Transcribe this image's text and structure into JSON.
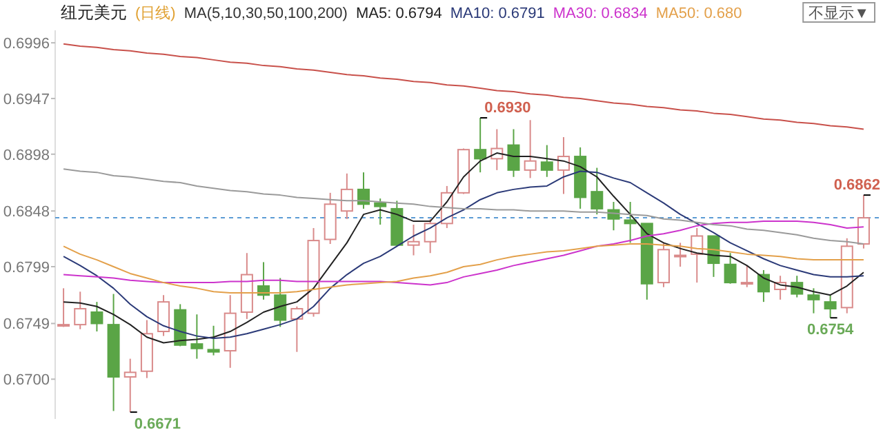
{
  "chart_data": {
    "type": "candlestick",
    "title": "纽元美元",
    "subtitle": "(日线)",
    "legend_title": "MA(5,10,30,50,100,200)",
    "legend": "top",
    "categories": [
      null,
      null,
      null,
      null,
      null,
      null,
      null,
      null,
      null,
      null,
      null,
      null,
      null,
      null,
      null,
      null,
      null,
      null,
      null,
      null,
      null,
      null,
      null,
      null,
      null,
      null,
      null,
      null,
      null,
      null,
      null,
      null,
      null,
      null,
      null,
      null,
      null,
      null,
      null,
      null,
      null,
      null,
      null,
      null,
      null,
      null,
      null,
      null,
      null
    ],
    "ohlc": [
      [
        0.6748,
        0.678,
        0.6746,
        0.6748
      ],
      [
        0.6748,
        0.6777,
        0.6744,
        0.6762
      ],
      [
        0.6759,
        0.6768,
        0.6742,
        0.6749
      ],
      [
        0.6748,
        0.6775,
        0.6672,
        0.6702
      ],
      [
        0.6702,
        0.6718,
        0.6671,
        0.6706
      ],
      [
        0.6707,
        0.6752,
        0.6701,
        0.674
      ],
      [
        0.6742,
        0.6774,
        0.6738,
        0.6768
      ],
      [
        0.6761,
        0.6766,
        0.6729,
        0.673
      ],
      [
        0.6731,
        0.6757,
        0.6718,
        0.6727
      ],
      [
        0.6726,
        0.6747,
        0.6721,
        0.6724
      ],
      [
        0.6725,
        0.6774,
        0.671,
        0.6758
      ],
      [
        0.6759,
        0.6811,
        0.6753,
        0.6792
      ],
      [
        0.6782,
        0.6803,
        0.677,
        0.6774
      ],
      [
        0.6774,
        0.6789,
        0.6746,
        0.6752
      ],
      [
        0.6753,
        0.6764,
        0.6724,
        0.6762
      ],
      [
        0.6758,
        0.6833,
        0.6755,
        0.6822
      ],
      [
        0.6823,
        0.6864,
        0.6819,
        0.6854
      ],
      [
        0.6848,
        0.6881,
        0.6841,
        0.6867
      ],
      [
        0.6867,
        0.6882,
        0.685,
        0.6854
      ],
      [
        0.6855,
        0.6859,
        0.6836,
        0.6852
      ],
      [
        0.685,
        0.6857,
        0.6817,
        0.6818
      ],
      [
        0.6818,
        0.6836,
        0.6809,
        0.6821
      ],
      [
        0.6821,
        0.6841,
        0.6811,
        0.6837
      ],
      [
        0.6837,
        0.687,
        0.6833,
        0.6864
      ],
      [
        0.6864,
        0.6903,
        0.6863,
        0.6902
      ],
      [
        0.6902,
        0.693,
        0.6882,
        0.6894
      ],
      [
        0.6894,
        0.692,
        0.6884,
        0.6903
      ],
      [
        0.6906,
        0.692,
        0.6878,
        0.6884
      ],
      [
        0.6884,
        0.6928,
        0.6877,
        0.6892
      ],
      [
        0.6891,
        0.6906,
        0.6878,
        0.6884
      ],
      [
        0.6884,
        0.6913,
        0.6863,
        0.6896
      ],
      [
        0.6896,
        0.6904,
        0.685,
        0.686
      ],
      [
        0.6865,
        0.6886,
        0.6845,
        0.685
      ],
      [
        0.6849,
        0.6856,
        0.6831,
        0.6841
      ],
      [
        0.684,
        0.6856,
        0.682,
        0.6837
      ],
      [
        0.6837,
        0.6837,
        0.677,
        0.6784
      ],
      [
        0.6785,
        0.682,
        0.6781,
        0.6814
      ],
      [
        0.6809,
        0.682,
        0.6799,
        0.6809
      ],
      [
        0.681,
        0.6833,
        0.6785,
        0.6826
      ],
      [
        0.6826,
        0.6826,
        0.679,
        0.6802
      ],
      [
        0.6801,
        0.6811,
        0.6784,
        0.6785
      ],
      [
        0.6785,
        0.68,
        0.6781,
        0.6785
      ],
      [
        0.6792,
        0.6796,
        0.6768,
        0.6777
      ],
      [
        0.6779,
        0.6791,
        0.677,
        0.6785
      ],
      [
        0.6785,
        0.6791,
        0.6772,
        0.6775
      ],
      [
        0.6774,
        0.678,
        0.6758,
        0.677
      ],
      [
        0.6768,
        0.6774,
        0.6754,
        0.6762
      ],
      [
        0.6763,
        0.6824,
        0.6758,
        0.6817
      ],
      [
        0.6819,
        0.6862,
        0.6815,
        0.6842
      ]
    ],
    "series": [
      {
        "type": "line",
        "name": "MA5: 0.6794",
        "color": "#222222",
        "values": [
          0.6768,
          0.6767,
          0.6764,
          0.6757,
          0.6748,
          0.6737,
          0.6732,
          0.6734,
          0.6735,
          0.6737,
          0.6742,
          0.675,
          0.6759,
          0.6764,
          0.6768,
          0.678,
          0.68,
          0.682,
          0.6845,
          0.6849,
          0.6845,
          0.6839,
          0.6839,
          0.6856,
          0.6878,
          0.6892,
          0.6899,
          0.6896,
          0.6896,
          0.6894,
          0.6892,
          0.6887,
          0.6878,
          0.6861,
          0.6845,
          0.6828,
          0.682,
          0.6815,
          0.6811,
          0.6809,
          0.6808,
          0.68,
          0.6789,
          0.6783,
          0.6781,
          0.6777,
          0.6774,
          0.6782,
          0.6794
        ]
      },
      {
        "type": "line",
        "name": "MA10: 0.6791",
        "color": "#2b3a78",
        "values": [
          0.6808,
          0.68,
          0.6791,
          0.678,
          0.6766,
          0.6755,
          0.6747,
          0.6742,
          0.6738,
          0.6736,
          0.6737,
          0.674,
          0.6744,
          0.6748,
          0.6753,
          0.6764,
          0.678,
          0.6792,
          0.6802,
          0.6808,
          0.6817,
          0.6826,
          0.6833,
          0.6842,
          0.6849,
          0.6858,
          0.6864,
          0.6867,
          0.6869,
          0.687,
          0.6878,
          0.6883,
          0.6882,
          0.6877,
          0.6873,
          0.6864,
          0.6855,
          0.6845,
          0.6837,
          0.6829,
          0.682,
          0.6813,
          0.6806,
          0.68,
          0.6796,
          0.6792,
          0.679,
          0.679,
          0.6791
        ]
      },
      {
        "type": "line",
        "name": "MA30: 0.6834",
        "color": "#cc33cc",
        "values": [
          0.6792,
          0.6791,
          0.679,
          0.6789,
          0.6787,
          0.6786,
          0.6785,
          0.6785,
          0.6785,
          0.6785,
          0.6786,
          0.6786,
          0.6787,
          0.6787,
          0.6786,
          0.6786,
          0.6786,
          0.6786,
          0.6786,
          0.6786,
          0.6785,
          0.6784,
          0.6783,
          0.6785,
          0.679,
          0.6793,
          0.6796,
          0.68,
          0.6803,
          0.6806,
          0.6809,
          0.6813,
          0.6817,
          0.6819,
          0.6822,
          0.6826,
          0.6828,
          0.6831,
          0.6835,
          0.6837,
          0.6838,
          0.6838,
          0.6839,
          0.6839,
          0.6839,
          0.6838,
          0.6836,
          0.6833,
          0.6834
        ]
      },
      {
        "type": "line",
        "name": "MA50: 0.680",
        "color": "#e3a04a",
        "values": [
          0.6817,
          0.681,
          0.6805,
          0.6799,
          0.6793,
          0.6789,
          0.6785,
          0.6782,
          0.678,
          0.6777,
          0.6776,
          0.6776,
          0.6776,
          0.6776,
          0.6777,
          0.6779,
          0.6781,
          0.6783,
          0.6784,
          0.6785,
          0.6786,
          0.6789,
          0.6791,
          0.6794,
          0.6799,
          0.6801,
          0.6805,
          0.6808,
          0.681,
          0.6812,
          0.6813,
          0.6815,
          0.6817,
          0.6818,
          0.6819,
          0.6819,
          0.6818,
          0.6817,
          0.6815,
          0.6814,
          0.6812,
          0.681,
          0.6809,
          0.6808,
          0.6806,
          0.6805,
          0.6805,
          0.6805,
          0.6805
        ]
      },
      {
        "type": "line",
        "color": "#9a9a9a",
        "values": [
          0.6885,
          0.6883,
          0.6882,
          0.6879,
          0.6878,
          0.6876,
          0.6874,
          0.6873,
          0.687,
          0.6868,
          0.6866,
          0.6865,
          0.6863,
          0.6862,
          0.686,
          0.6859,
          0.6858,
          0.6857,
          0.6857,
          0.6856,
          0.6855,
          0.6854,
          0.6852,
          0.6851,
          0.685,
          0.685,
          0.6849,
          0.6849,
          0.6848,
          0.6848,
          0.6848,
          0.6847,
          0.6847,
          0.6846,
          0.6845,
          0.6844,
          0.6841,
          0.684,
          0.6838,
          0.6836,
          0.6835,
          0.6832,
          0.6831,
          0.6829,
          0.6827,
          0.6824,
          0.6822,
          0.6821,
          0.6819
        ]
      },
      {
        "type": "line",
        "color": "#c8504a",
        "values": [
          0.6995,
          0.6993,
          0.6992,
          0.699,
          0.6989,
          0.6987,
          0.6986,
          0.6984,
          0.6983,
          0.6981,
          0.6979,
          0.6978,
          0.6976,
          0.6975,
          0.6973,
          0.6972,
          0.697,
          0.6968,
          0.6967,
          0.6965,
          0.6964,
          0.6962,
          0.6961,
          0.6959,
          0.6958,
          0.6956,
          0.6954,
          0.6953,
          0.6951,
          0.695,
          0.6948,
          0.6947,
          0.6945,
          0.6943,
          0.6942,
          0.694,
          0.6939,
          0.6937,
          0.6936,
          0.6934,
          0.6933,
          0.6931,
          0.6929,
          0.6928,
          0.6926,
          0.6925,
          0.6923,
          0.6922,
          0.692
        ]
      }
    ],
    "ylim": [
      0.6665,
      0.7007
    ],
    "yticks": [
      0.6996,
      0.6947,
      0.6898,
      0.6848,
      0.6799,
      0.6749,
      {
        "value": 0.67,
        "label": "0.6700"
      }
    ],
    "ref_lines": [
      {
        "axis": "y",
        "value": 0.6842,
        "color": "#5b9bd5",
        "line_style": "dashed"
      }
    ],
    "annotations": [
      "不显示▼",
      "0.6930",
      "0.6671",
      "0.6862",
      "0.6754"
    ]
  }
}
